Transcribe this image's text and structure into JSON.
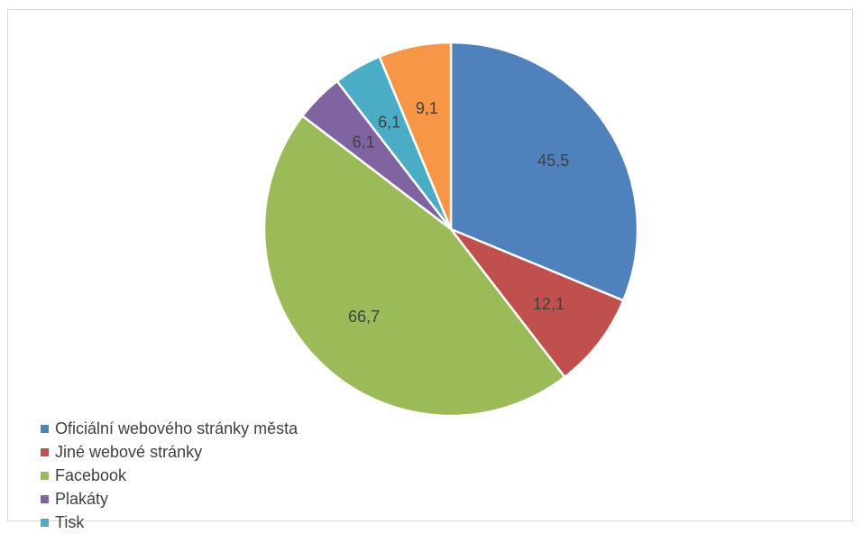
{
  "chart_data": {
    "type": "pie",
    "title": "",
    "categories": [
      "Oficiální webového stránky města",
      "Jiné webové stránky",
      "Facebook",
      "Plakáty",
      "Tisk",
      ""
    ],
    "values": [
      45.5,
      12.1,
      66.7,
      6.1,
      6.1,
      9.1
    ],
    "labels": [
      "45,5",
      "12,1",
      "66,7",
      "6,1",
      "6,1",
      "9,1"
    ],
    "colors": [
      "#4f81bd",
      "#c0504d",
      "#9bbb59",
      "#8064a2",
      "#4bacc6",
      "#f79646"
    ],
    "legend": {
      "position": "bottom-left",
      "visible_entries": [
        "Oficiální webového stránky města",
        "Jiné webové stránky",
        "Facebook",
        "Plakáty",
        "Tisk"
      ]
    }
  }
}
